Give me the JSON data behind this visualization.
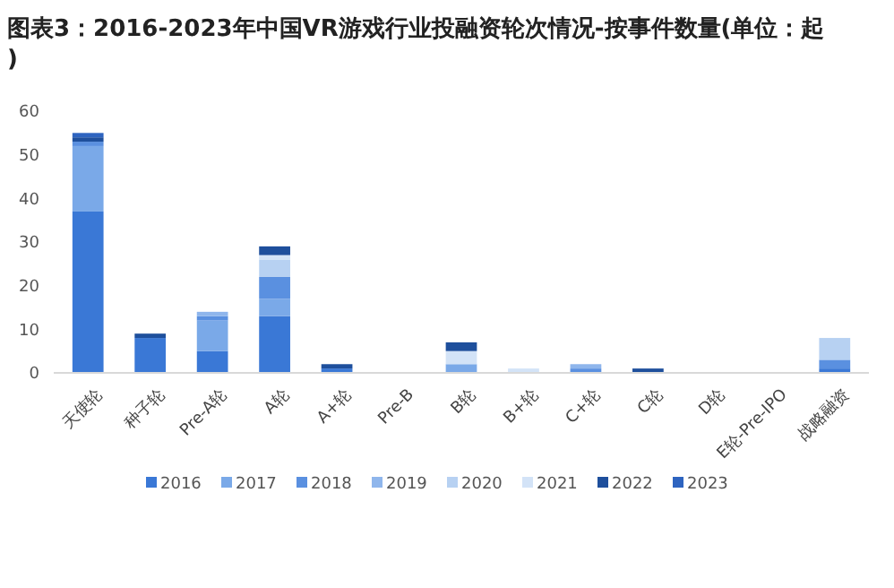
{
  "chart_data": {
    "type": "bar",
    "stacked": true,
    "title": "图表3：2016-2023年中国VR游戏行业投融资轮次情况-按事件数量(单位：起)",
    "categories": [
      "天使轮",
      "种子轮",
      "Pre-A轮",
      "A轮",
      "A+轮",
      "Pre-B",
      "B轮",
      "B+轮",
      "C+轮",
      "C轮",
      "D轮",
      "E轮-Pre-IPO",
      "战略融资"
    ],
    "series": [
      {
        "name": "2016",
        "color": "#3a78d6",
        "values": [
          37,
          8,
          5,
          13,
          1,
          0,
          0,
          0,
          0,
          0,
          0,
          0,
          1
        ]
      },
      {
        "name": "2017",
        "color": "#7aa9e8",
        "values": [
          15,
          0,
          7,
          4,
          0,
          0,
          2,
          0,
          0,
          0,
          0,
          0,
          0
        ]
      },
      {
        "name": "2018",
        "color": "#5a90e0",
        "values": [
          1,
          0,
          1,
          5,
          0,
          0,
          0,
          0,
          1,
          0,
          0,
          0,
          2
        ]
      },
      {
        "name": "2019",
        "color": "#8fb6ec",
        "values": [
          0,
          0,
          1,
          0,
          0,
          0,
          0,
          0,
          1,
          0,
          0,
          0,
          0
        ]
      },
      {
        "name": "2020",
        "color": "#b7d1f2",
        "values": [
          0,
          0,
          0,
          4,
          0,
          0,
          0,
          0,
          0,
          0,
          0,
          0,
          5
        ]
      },
      {
        "name": "2021",
        "color": "#d3e3f7",
        "values": [
          0,
          0,
          0,
          1,
          0,
          0,
          3,
          1,
          0,
          0,
          0,
          0,
          0
        ]
      },
      {
        "name": "2022",
        "color": "#1e4f9c",
        "values": [
          1,
          1,
          0,
          2,
          1,
          0,
          2,
          0,
          0,
          1,
          0,
          0,
          0
        ]
      },
      {
        "name": "2023",
        "color": "#2e64c0",
        "values": [
          1,
          0,
          0,
          0,
          0,
          0,
          0,
          0,
          0,
          0,
          0,
          0,
          0
        ]
      }
    ],
    "ylim": [
      0,
      60
    ],
    "yticks": [
      0,
      10,
      20,
      30,
      40,
      50,
      60
    ],
    "legend": "bottom"
  }
}
